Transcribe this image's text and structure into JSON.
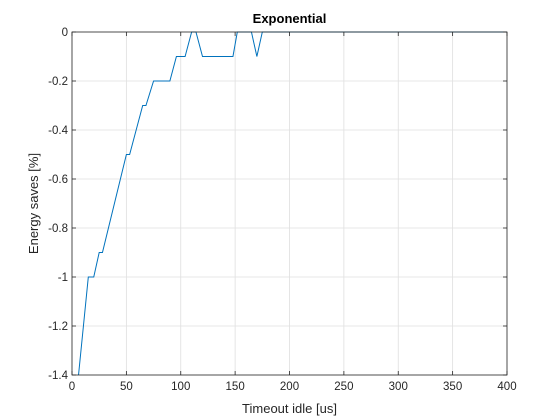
{
  "chart_data": {
    "type": "line",
    "title": "Exponential",
    "xlabel": "Timeout idle [us]",
    "ylabel": "Energy saves [%]",
    "xlim": [
      0,
      400
    ],
    "ylim": [
      -1.4,
      0
    ],
    "xticks": [
      0,
      50,
      100,
      150,
      200,
      250,
      300,
      350,
      400
    ],
    "yticks": [
      0,
      -0.2,
      -0.4,
      -0.6,
      -0.8,
      -1,
      -1.2,
      -1.4
    ],
    "xtick_labels": [
      "0",
      "50",
      "100",
      "150",
      "200",
      "250",
      "300",
      "350",
      "400"
    ],
    "ytick_labels": [
      "0",
      "-0.2",
      "-0.4",
      "-0.6",
      "-0.8",
      "-1",
      "-1.2",
      "-1.4"
    ],
    "grid": true,
    "line_color": "#0072BD",
    "series": [
      {
        "x": [
          6,
          15,
          20,
          25,
          28,
          50,
          53,
          65,
          68,
          75,
          80,
          90,
          96,
          100,
          104,
          110,
          114,
          120,
          130,
          140,
          148,
          152,
          156,
          165,
          170,
          175,
          180,
          200,
          250,
          300,
          350,
          400
        ],
        "y": [
          -1.4,
          -1.0,
          -1.0,
          -0.9,
          -0.9,
          -0.5,
          -0.5,
          -0.3,
          -0.3,
          -0.2,
          -0.2,
          -0.2,
          -0.1,
          -0.1,
          -0.1,
          0.0,
          0.0,
          -0.1,
          -0.1,
          -0.1,
          -0.1,
          0.0,
          0.0,
          0.0,
          -0.1,
          0.0,
          0.0,
          0.0,
          0.0,
          0.0,
          0.0,
          0.0
        ]
      }
    ]
  }
}
